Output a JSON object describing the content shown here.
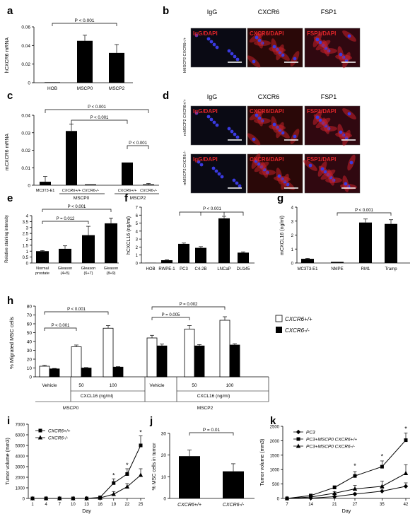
{
  "panels": {
    "a": "a",
    "b": "b",
    "c": "c",
    "d": "d",
    "e": "e",
    "f": "f",
    "g": "g",
    "h": "h",
    "i": "i",
    "j": "j",
    "k": "k"
  },
  "micrographs": {
    "b": {
      "columns": [
        "IgG",
        "CXCR6",
        "FSP1"
      ],
      "rows": [
        {
          "side_label": "hMSCP2 CXCR6+/+",
          "insets": [
            "IgG/DAPI",
            "CXCR6/DAPI",
            "FSP1/DAPI"
          ]
        }
      ]
    },
    "d": {
      "columns": [
        "IgG",
        "CXCR6",
        "FSP1"
      ],
      "rows": [
        {
          "side_label": "mMSCP2 CXCR6+/+",
          "insets": [
            "IgG/DAPI",
            "CXCR6/DAPI",
            "FSP1/DAPI"
          ]
        },
        {
          "side_label": "mMSCP2 CXCR6-/-",
          "insets": [
            "IgG/DAPI",
            "CXCR6/DAPI",
            "FSP1/DAPI"
          ]
        }
      ]
    }
  },
  "colors": {
    "black": "#000000",
    "white": "#ffffff",
    "red": "#e0252a",
    "blue": "#3a3ae0"
  },
  "chart_data": [
    {
      "id": "a",
      "type": "bar",
      "ylabel": "hCXCR6 mRNA",
      "categories": [
        "HOB",
        "MSCP0",
        "MSCP2"
      ],
      "values": [
        0.0005,
        0.045,
        0.032
      ],
      "errors": [
        0,
        0.006,
        0.009
      ],
      "ylim": [
        0,
        0.06
      ],
      "yticks": [
        "0",
        "0.02",
        "0.04",
        "0.06"
      ],
      "annotations": [
        "P < 0.001"
      ]
    },
    {
      "id": "c",
      "type": "bar",
      "ylabel": "mCXCR6 mRNA",
      "categories": [
        "MC3T3-E1",
        "CXCR6+/+",
        "CXCR6-/-",
        "CXCR6+/+",
        "CXCR6-/-"
      ],
      "groups": [
        "MSCP0",
        "MSCP2"
      ],
      "values": [
        0.002,
        0.031,
        0.0005,
        0.013,
        0.0005
      ],
      "errors": [
        0.003,
        0.004,
        0,
        0,
        0.0005
      ],
      "ylim": [
        0,
        0.04
      ],
      "yticks": [
        "0",
        "0.01",
        "0.02",
        "0.03",
        "0.04"
      ],
      "annotations": [
        "P < 0.001",
        "P < 0.001",
        "P < 0.001"
      ]
    },
    {
      "id": "e",
      "type": "bar",
      "ylabel": "Relative staining intensity",
      "categories": [
        "Normal prostate",
        "Gleason (4+5)",
        "Gleason (6+7)",
        "Gleason (8+9)"
      ],
      "values": [
        1.0,
        1.2,
        2.35,
        3.35
      ],
      "errors": [
        0.05,
        0.25,
        0.75,
        0.45
      ],
      "ylim": [
        0,
        4
      ],
      "yticks": [
        "0",
        "0.5",
        "1",
        "1.5",
        "2",
        "2.5",
        "3",
        "3.5",
        "4"
      ],
      "annotations": [
        "P < 0.001",
        "P = 0.012"
      ]
    },
    {
      "id": "f",
      "type": "bar",
      "ylabel": "hCXCL16 (ng/ml)",
      "categories": [
        "HOB",
        "RWPE-1",
        "PC3",
        "C4-2B",
        "LNCaP",
        "DU145"
      ],
      "values": [
        0.02,
        0.35,
        2.4,
        1.9,
        5.6,
        1.3
      ],
      "errors": [
        0,
        0.05,
        0.1,
        0.15,
        0.25,
        0.1
      ],
      "ylim": [
        0,
        7
      ],
      "yticks": [
        "0",
        "1",
        "2",
        "3",
        "4",
        "5",
        "6",
        "7"
      ],
      "annotations": [
        "P < 0.001"
      ]
    },
    {
      "id": "g",
      "type": "bar",
      "ylabel": "mCXCL16 (ng/ml)",
      "categories": [
        "MC3T3-E1",
        "NMPE",
        "RM1",
        "Tramp"
      ],
      "values": [
        0.3,
        0.08,
        2.9,
        2.8
      ],
      "errors": [
        0.03,
        0,
        0.25,
        0.3
      ],
      "ylim": [
        0,
        4
      ],
      "yticks": [
        "0",
        "1",
        "2",
        "3",
        "4"
      ],
      "annotations": [
        "P < 0.001"
      ]
    },
    {
      "id": "h",
      "type": "bar",
      "ylabel": "% Migrated MSC cells",
      "categories": [
        "Vehicle",
        "50",
        "100",
        "Vehicle",
        "50",
        "100"
      ],
      "group_labels": [
        "CXCL16 (ng/ml)",
        "CXCL16 (ng/ml)",
        "MSCP0",
        "MSCP2"
      ],
      "series": [
        {
          "name": "CXCR6+/+",
          "values": [
            12,
            34,
            55,
            44,
            54,
            64
          ],
          "errors": [
            1,
            2,
            3,
            3,
            4,
            4
          ]
        },
        {
          "name": "CXCR6-/-",
          "values": [
            9,
            10,
            11,
            35,
            35,
            36
          ],
          "errors": [
            0.5,
            0.5,
            0.5,
            2,
            1.5,
            1.5
          ]
        }
      ],
      "ylim": [
        0,
        80
      ],
      "yticks": [
        "0",
        "10",
        "20",
        "30",
        "40",
        "50",
        "60",
        "70",
        "80"
      ],
      "annotations": [
        "P < 0.001",
        "P < 0.001",
        "P = 0.005",
        "P = 0.002"
      ],
      "legend": "top-right"
    },
    {
      "id": "i",
      "type": "line",
      "xlabel": "Day",
      "ylabel": "Tumor volume (mm3)",
      "x": [
        1,
        4,
        7,
        10,
        13,
        16,
        19,
        22,
        25
      ],
      "series": [
        {
          "name": "CXCR6+/+",
          "values": [
            0,
            0,
            0,
            0,
            0,
            100,
            1450,
            2300,
            5000
          ],
          "errors": [
            0,
            0,
            0,
            0,
            0,
            50,
            400,
            500,
            900
          ]
        },
        {
          "name": "CXCR6-/-",
          "values": [
            0,
            0,
            0,
            0,
            0,
            50,
            400,
            1100,
            2200
          ],
          "errors": [
            0,
            0,
            0,
            0,
            0,
            30,
            250,
            300,
            600
          ]
        }
      ],
      "xticks": [
        "1",
        "4",
        "7",
        "10",
        "13",
        "16",
        "19",
        "22",
        "25"
      ],
      "ylim": [
        0,
        7000
      ],
      "yticks": [
        "0",
        "1000",
        "2000",
        "3000",
        "4000",
        "5000",
        "6000",
        "7000"
      ],
      "annotations": [
        "*",
        "*",
        "*"
      ],
      "legend": "top-left"
    },
    {
      "id": "j",
      "type": "bar",
      "ylabel": "% MSC cells in tumor",
      "categories": [
        "CXCR6+/+",
        "CXCR6-/-"
      ],
      "values": [
        19.5,
        12.5
      ],
      "errors": [
        2.8,
        3.5
      ],
      "ylim": [
        0,
        30
      ],
      "yticks": [
        "0",
        "10",
        "20",
        "30"
      ],
      "annotations": [
        "P = 0.01"
      ]
    },
    {
      "id": "k",
      "type": "line",
      "xlabel": "Day",
      "ylabel": "Tumor volume (mm3)",
      "x": [
        7,
        14,
        21,
        27,
        35,
        42
      ],
      "series": [
        {
          "name": "PC3",
          "values": [
            0,
            10,
            60,
            150,
            250,
            420
          ],
          "errors": [
            0,
            5,
            20,
            40,
            80,
            120
          ]
        },
        {
          "name": "PC3+MSCP0 CXCR6+/+",
          "values": [
            0,
            100,
            380,
            780,
            1100,
            2020
          ],
          "errors": [
            0,
            20,
            60,
            150,
            200,
            250
          ]
        },
        {
          "name": "PC3+MSCP0 CXCR6-/-",
          "values": [
            0,
            50,
            180,
            330,
            420,
            870
          ],
          "errors": [
            0,
            15,
            50,
            120,
            180,
            300
          ]
        }
      ],
      "xticks": [
        "7",
        "14",
        "21",
        "27",
        "35",
        "42"
      ],
      "ylim": [
        0,
        2500
      ],
      "yticks": [
        "0",
        "500",
        "1000",
        "1500",
        "2000",
        "2500"
      ],
      "annotations": [
        "*",
        "*",
        "*"
      ],
      "legend": "top-left"
    }
  ]
}
